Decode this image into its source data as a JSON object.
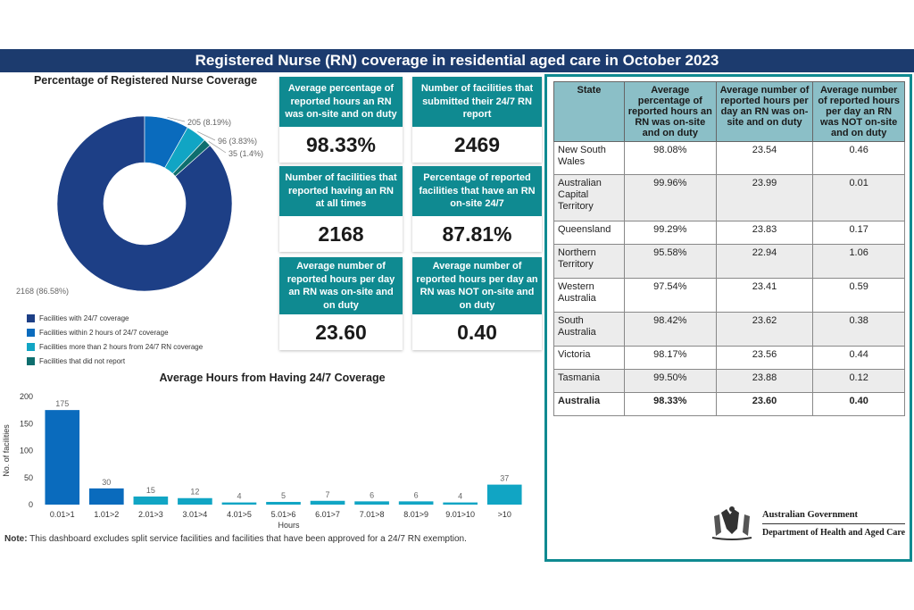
{
  "banner": {
    "title": "Registered Nurse (RN) coverage in residential aged care in October 2023"
  },
  "donut": {
    "title": "Percentage of Registered Nurse Coverage",
    "legend": [
      {
        "label": "Facilities with 24/7 coverage",
        "color": "#1d3f86"
      },
      {
        "label": "Facilities within 2 hours of 24/7 coverage",
        "color": "#0a6bbd"
      },
      {
        "label": "Facilities more than 2 hours from 24/7 RN coverage",
        "color": "#11a5c4"
      },
      {
        "label": "Facilities that did not report",
        "color": "#0e6e6e"
      }
    ]
  },
  "kpis": [
    {
      "heading": "Average percentage of reported hours an RN was on-site and on duty",
      "value": "98.33%"
    },
    {
      "heading": "Number of facilities that submitted their 24/7 RN report",
      "value": "2469"
    },
    {
      "heading": "Number of facilities that reported having an RN at all times",
      "value": "2168"
    },
    {
      "heading": "Percentage of reported facilities that have an RN on-site 24/7",
      "value": "87.81%"
    },
    {
      "heading": "Average number of reported hours per day an RN was on-site and on duty",
      "value": "23.60"
    },
    {
      "heading": "Average number of reported hours per day an RN was NOT on-site and on duty",
      "value": "0.40"
    }
  ],
  "bar": {
    "title": "Average Hours from Having 24/7 Coverage"
  },
  "note": {
    "label": "Note:",
    "text": " This dashboard excludes split service facilities and facilities that have been approved for a 24/7 RN exemption."
  },
  "table": {
    "headers": [
      "State",
      "Average percentage of reported hours an RN was on-site and on duty",
      "Average number of reported hours per day an RN was on-site and on duty",
      "Average number of reported hours per day an RN was NOT on-site and on duty"
    ],
    "rows": [
      [
        "New South Wales",
        "98.08%",
        "23.54",
        "0.46"
      ],
      [
        "Australian Capital Territory",
        "99.96%",
        "23.99",
        "0.01"
      ],
      [
        "Queensland",
        "99.29%",
        "23.83",
        "0.17"
      ],
      [
        "Northern Territory",
        "95.58%",
        "22.94",
        "1.06"
      ],
      [
        "Western Australia",
        "97.54%",
        "23.41",
        "0.59"
      ],
      [
        "South Australia",
        "98.42%",
        "23.62",
        "0.38"
      ],
      [
        "Victoria",
        "98.17%",
        "23.56",
        "0.44"
      ],
      [
        "Tasmania",
        "99.50%",
        "23.88",
        "0.12"
      ],
      [
        "Australia",
        "98.33%",
        "23.60",
        "0.40"
      ]
    ]
  },
  "gov": {
    "line1": "Australian Government",
    "line2": "Department of Health and Aged Care"
  },
  "chart_data": [
    {
      "type": "pie",
      "title": "Percentage of Registered Nurse Coverage",
      "categories": [
        "Facilities with 24/7 coverage",
        "Facilities within 2 hours of 24/7 coverage",
        "Facilities more than 2 hours from 24/7 RN coverage",
        "Facilities that did not report"
      ],
      "values": [
        2168,
        205,
        96,
        35
      ],
      "data_labels": [
        "2168 (86.58%)",
        "205 (8.19%)",
        "96 (3.83%)",
        "35 (1.4%)"
      ],
      "colors": [
        "#1d3f86",
        "#0a6bbd",
        "#11a5c4",
        "#0e6e6e"
      ]
    },
    {
      "type": "bar",
      "title": "Average Hours from Having 24/7 Coverage",
      "categories": [
        "0.01>1",
        "1.01>2",
        "2.01>3",
        "3.01>4",
        "4.01>5",
        "5.01>6",
        "6.01>7",
        "7.01>8",
        "8.01>9",
        "9.01>10",
        ">10"
      ],
      "values": [
        175,
        30,
        15,
        12,
        4,
        5,
        7,
        6,
        6,
        4,
        37
      ],
      "xlabel": "Hours",
      "ylabel": "No. of facilities",
      "ylim": [
        0,
        200
      ],
      "yticks": [
        0,
        50,
        100,
        150,
        200
      ],
      "colors": [
        "#0a6bbd",
        "#0a6bbd",
        "#11a5c4",
        "#11a5c4",
        "#11a5c4",
        "#11a5c4",
        "#11a5c4",
        "#11a5c4",
        "#11a5c4",
        "#11a5c4",
        "#11a5c4"
      ]
    }
  ]
}
